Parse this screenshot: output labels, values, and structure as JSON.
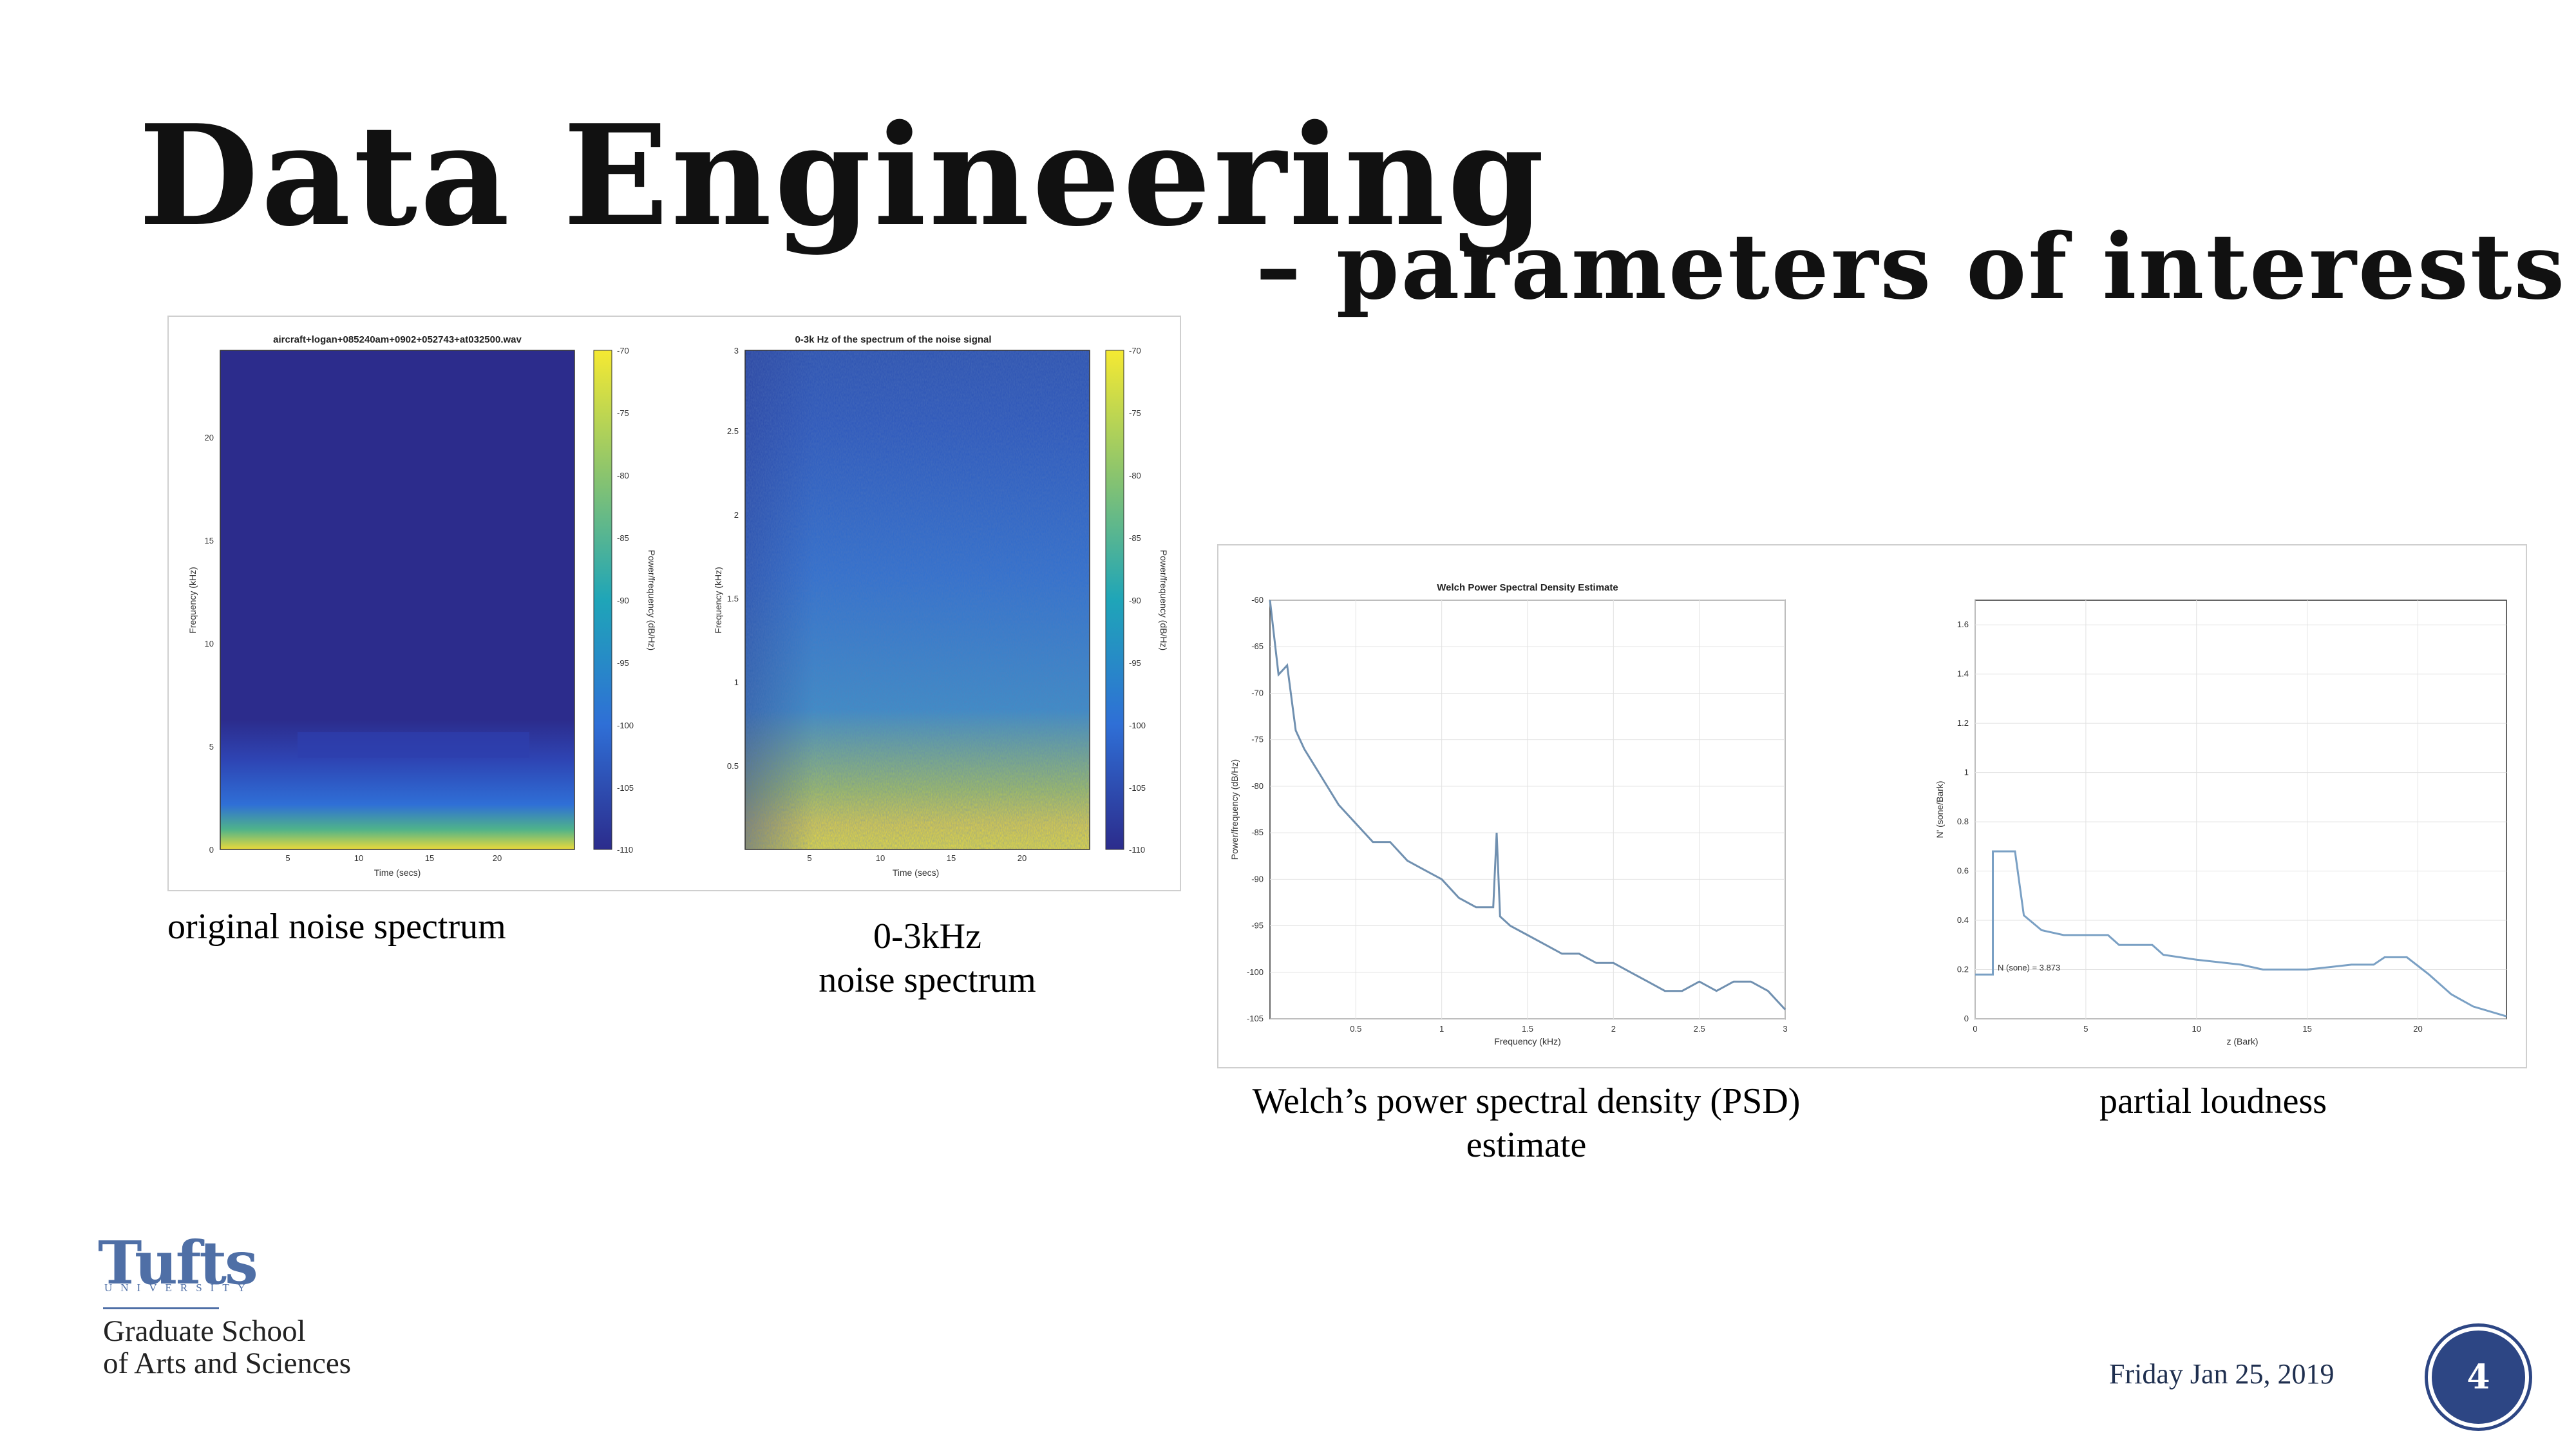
{
  "slide": {
    "title": "Data Engineering",
    "subtitle": "– parameters of interests",
    "date": "Friday Jan 25, 2019",
    "page_number": "4"
  },
  "captions": {
    "original": "original noise spectrum",
    "khz_line1": "0-3kHz",
    "khz_line2": "noise spectrum",
    "welch_line1": "Welch’s power spectral density (PSD)",
    "welch_line2": "estimate",
    "loudness": "partial loudness"
  },
  "logo": {
    "wordmark": "Tufts",
    "university": "UNIVERSITY",
    "school_line1": "Graduate School",
    "school_line2": "of Arts and Sciences"
  },
  "chart_data": [
    {
      "type": "heatmap",
      "title": "aircraft+logan+085240am+0902+052743+at032500.wav",
      "xlabel": "Time (secs)",
      "ylabel": "Frequency (kHz)",
      "colorbar_label": "Power/frequency (dB/Hz)",
      "xticks": [
        "5",
        "10",
        "15",
        "20"
      ],
      "yticks": [
        "0",
        "5",
        "10",
        "15",
        "20"
      ],
      "colorbar_ticks": [
        "-70",
        "-75",
        "-80",
        "-85",
        "-90",
        "-95",
        "-100",
        "-105",
        "-110"
      ],
      "colormap": [
        "#2c2c8c",
        "#2f6fd6",
        "#1fa5b8",
        "#7fc47a",
        "#e3d23a",
        "#f5e932"
      ]
    },
    {
      "type": "heatmap",
      "title": "0-3k Hz of the spectrum of the noise signal",
      "xlabel": "Time (secs)",
      "ylabel": "Frequency (kHz)",
      "colorbar_label": "Power/frequency (dB/Hz)",
      "xticks": [
        "5",
        "10",
        "15",
        "20"
      ],
      "yticks": [
        "0.5",
        "1",
        "1.5",
        "2",
        "2.5",
        "3"
      ],
      "colorbar_ticks": [
        "-70",
        "-75",
        "-80",
        "-85",
        "-90",
        "-95",
        "-100",
        "-105",
        "-110"
      ]
    },
    {
      "type": "line",
      "title": "Welch Power Spectral Density Estimate",
      "xlabel": "Frequency (kHz)",
      "ylabel": "Power/frequency (dB/Hz)",
      "xlim": [
        0,
        3
      ],
      "ylim": [
        -105,
        -60
      ],
      "xticks": [
        "0.5",
        "1",
        "1.5",
        "2",
        "2.5",
        "3"
      ],
      "yticks": [
        "-60",
        "-65",
        "-70",
        "-75",
        "-80",
        "-85",
        "-90",
        "-95",
        "-100",
        "-105"
      ],
      "series": [
        {
          "x": [
            0.0,
            0.05,
            0.1,
            0.15,
            0.2,
            0.3,
            0.4,
            0.5,
            0.6,
            0.7,
            0.8,
            0.9,
            1.0,
            1.1,
            1.2,
            1.3,
            1.32,
            1.34,
            1.4,
            1.5,
            1.6,
            1.7,
            1.8,
            1.9,
            2.0,
            2.1,
            2.2,
            2.3,
            2.4,
            2.5,
            2.6,
            2.7,
            2.8,
            2.9,
            3.0
          ],
          "y": [
            -60,
            -68,
            -67,
            -74,
            -76,
            -79,
            -82,
            -84,
            -86,
            -86,
            -88,
            -89,
            -90,
            -92,
            -93,
            -93,
            -85,
            -94,
            -95,
            -96,
            -97,
            -98,
            -98,
            -99,
            -99,
            -100,
            -101,
            -102,
            -102,
            -101,
            -102,
            -101,
            -101,
            -102,
            -104
          ]
        }
      ]
    },
    {
      "type": "line",
      "xlabel": "z (Bark)",
      "ylabel": "N' (sone/Bark)",
      "xlim": [
        0,
        24
      ],
      "ylim": [
        0,
        1.7
      ],
      "xticks": [
        "0",
        "5",
        "10",
        "15",
        "20"
      ],
      "yticks": [
        "0",
        "0.2",
        "0.4",
        "0.6",
        "0.8",
        "1",
        "1.2",
        "1.4",
        "1.6"
      ],
      "annotation": "N (sone) =        3.873",
      "series": [
        {
          "x": [
            0,
            0.8,
            0.8,
            1.8,
            2.2,
            3,
            4,
            6,
            6.5,
            8,
            8.5,
            10,
            12,
            13,
            15,
            16,
            17,
            18,
            18.5,
            19.5,
            20.5,
            21.5,
            22.5,
            24
          ],
          "y": [
            0.18,
            0.18,
            0.68,
            0.68,
            0.42,
            0.36,
            0.34,
            0.34,
            0.3,
            0.3,
            0.26,
            0.24,
            0.22,
            0.2,
            0.2,
            0.21,
            0.22,
            0.22,
            0.25,
            0.25,
            0.18,
            0.1,
            0.05,
            0.01
          ]
        }
      ]
    }
  ]
}
